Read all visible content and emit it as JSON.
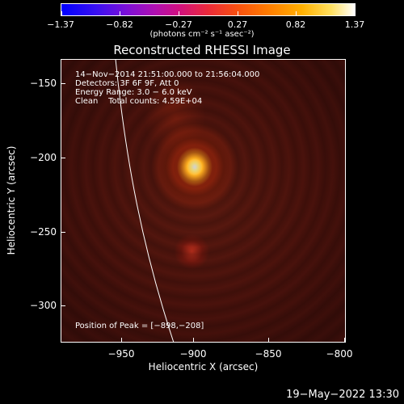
{
  "colorbar": {
    "ticks": [
      "−1.37",
      "−0.82",
      "−0.27",
      "0.27",
      "0.82",
      "1.37"
    ],
    "units": "(photons cm⁻² s⁻¹ asec⁻²)"
  },
  "title": "Reconstructed RHESSI Image",
  "info": {
    "line1": "14−Nov−2014 21:51:00.000 to 21:56:04.000",
    "line2": "Detectors: 3F 6F 9F, Att 0",
    "line3": "Energy Range: 3.0 − 6.0 keV",
    "line4": "Clean    Total counts: 4.59E+04"
  },
  "peak": "Position of Peak = [−898,−208]",
  "axes": {
    "x_ticks": [
      "−950",
      "−900",
      "−850",
      "−800"
    ],
    "y_ticks": [
      "−150",
      "−200",
      "−250",
      "−300"
    ],
    "x_title": "Heliocentric X (arcsec)",
    "y_title": "Heliocentric Y (arcsec)"
  },
  "timestamp": "19−May−2022 13:30"
}
